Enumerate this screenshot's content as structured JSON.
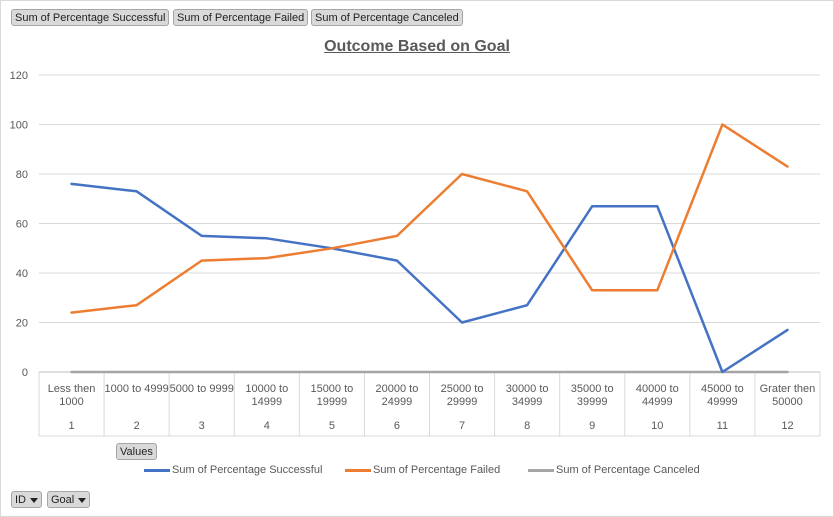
{
  "field_buttons": {
    "successful": "Sum of Percentage Successful",
    "failed": "Sum of Percentage Failed",
    "canceled": "Sum of Percentage Canceled",
    "values": "Values"
  },
  "filters": {
    "id": "ID",
    "goal": "Goal"
  },
  "colors": {
    "successful": "#4472c4",
    "failed": "#ed7d31",
    "canceled": "#a5a5a5",
    "grid": "#d9d9d9",
    "text": "#595959"
  },
  "chart_data": {
    "type": "line",
    "title": "Outcome Based on Goal",
    "ylim": [
      0,
      120
    ],
    "yticks": [
      0,
      20,
      40,
      60,
      80,
      100,
      120
    ],
    "grid": true,
    "legend_position": "bottom",
    "categories": [
      [
        "Less then",
        "1000"
      ],
      [
        "1000 to 4999"
      ],
      [
        "5000 to 9999"
      ],
      [
        "10000 to",
        "14999"
      ],
      [
        "15000 to",
        "19999"
      ],
      [
        "20000 to",
        "24999"
      ],
      [
        "25000 to",
        "29999"
      ],
      [
        "30000 to",
        "34999"
      ],
      [
        "35000 to",
        "39999"
      ],
      [
        "40000 to",
        "44999"
      ],
      [
        "45000 to",
        "49999"
      ],
      [
        "Grater then",
        "50000"
      ]
    ],
    "ids": [
      "1",
      "2",
      "3",
      "4",
      "5",
      "6",
      "7",
      "8",
      "9",
      "10",
      "11",
      "12"
    ],
    "series": [
      {
        "name": "Sum of Percentage Successful",
        "key": "successful",
        "values": [
          76,
          73,
          55,
          54,
          50,
          45,
          20,
          27,
          67,
          67,
          0,
          17
        ]
      },
      {
        "name": "Sum of Percentage Failed",
        "key": "failed",
        "values": [
          24,
          27,
          45,
          46,
          50,
          55,
          80,
          73,
          33,
          33,
          100,
          83
        ]
      },
      {
        "name": "Sum of Percentage Canceled",
        "key": "canceled",
        "values": [
          0,
          0,
          0,
          0,
          0,
          0,
          0,
          0,
          0,
          0,
          0,
          0
        ]
      }
    ]
  }
}
